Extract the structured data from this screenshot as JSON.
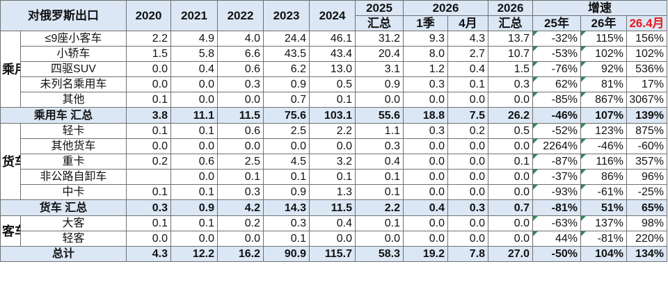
{
  "chart_data": {
    "type": "table",
    "header": {
      "title": "对俄罗斯出口",
      "years": [
        "2020",
        "2021",
        "2022",
        "2023",
        "2024"
      ],
      "c2025_top": "2025",
      "c2025_bottom": "汇总",
      "c2026_top": "2026",
      "c2026_q1": "1季",
      "c2026_apr": "4月",
      "c2026b_top": "2026",
      "c2026b_bottom": "汇总",
      "growth_top": "增速",
      "g25": "25年",
      "g26": "26年",
      "g264": "26.4月"
    },
    "groups": [
      {
        "category": "乘用车",
        "rows": [
          {
            "name": "≤9座小客车",
            "values": [
              "2.2",
              "4.9",
              "4.0",
              "24.4",
              "46.1",
              "31.2",
              "9.3",
              "4.3",
              "13.7",
              "-32%",
              "115%",
              "156%"
            ]
          },
          {
            "name": "小轿车",
            "values": [
              "1.5",
              "5.8",
              "6.6",
              "43.5",
              "43.4",
              "20.4",
              "8.0",
              "2.7",
              "10.7",
              "-53%",
              "102%",
              "102%"
            ]
          },
          {
            "name": "四驱SUV",
            "values": [
              "0.0",
              "0.4",
              "0.6",
              "6.2",
              "13.0",
              "3.1",
              "1.2",
              "0.4",
              "1.5",
              "-76%",
              "92%",
              "536%"
            ]
          },
          {
            "name": "未列名乘用车",
            "values": [
              "0.0",
              "0.0",
              "0.3",
              "0.9",
              "0.5",
              "0.9",
              "0.3",
              "0.1",
              "0.3",
              "62%",
              "81%",
              "17%"
            ]
          },
          {
            "name": "其他",
            "values": [
              "0.1",
              "0.0",
              "0.0",
              "0.7",
              "0.1",
              "0.0",
              "0.0",
              "0.0",
              "0.0",
              "-85%",
              "867%",
              "3067%"
            ]
          }
        ],
        "subtotal": {
          "name": "乘用车 汇总",
          "values": [
            "3.8",
            "11.1",
            "11.5",
            "75.6",
            "103.1",
            "55.6",
            "18.8",
            "7.5",
            "26.2",
            "-46%",
            "107%",
            "139%"
          ]
        }
      },
      {
        "category": "货车",
        "rows": [
          {
            "name": "轻卡",
            "values": [
              "0.1",
              "0.1",
              "0.6",
              "2.5",
              "2.2",
              "1.1",
              "0.3",
              "0.2",
              "0.5",
              "-52%",
              "123%",
              "875%"
            ]
          },
          {
            "name": "其他货车",
            "values": [
              "0.0",
              "0.0",
              "0.0",
              "0.0",
              "0.0",
              "0.3",
              "0.0",
              "0.0",
              "0.0",
              "2264%",
              "-46%",
              "-60%"
            ]
          },
          {
            "name": "重卡",
            "values": [
              "0.2",
              "0.6",
              "2.5",
              "4.5",
              "3.2",
              "0.4",
              "0.0",
              "0.0",
              "0.1",
              "-87%",
              "116%",
              "357%"
            ]
          },
          {
            "name": "非公路自卸车",
            "values": [
              "",
              "0.0",
              "0.1",
              "0.1",
              "0.1",
              "0.1",
              "0.0",
              "0.0",
              "0.0",
              "-37%",
              "86%",
              "96%"
            ]
          },
          {
            "name": "中卡",
            "values": [
              "0.1",
              "0.1",
              "0.3",
              "0.9",
              "1.3",
              "0.1",
              "0.0",
              "0.0",
              "0.0",
              "-93%",
              "-61%",
              "-25%"
            ]
          }
        ],
        "subtotal": {
          "name": "货车 汇总",
          "values": [
            "0.3",
            "0.9",
            "4.2",
            "14.3",
            "11.5",
            "2.2",
            "0.4",
            "0.3",
            "0.7",
            "-81%",
            "51%",
            "65%"
          ]
        }
      },
      {
        "category": "客车",
        "rows": [
          {
            "name": "大客",
            "values": [
              "0.1",
              "0.1",
              "0.2",
              "0.3",
              "0.4",
              "0.1",
              "0.0",
              "0.0",
              "0.0",
              "-63%",
              "137%",
              "98%"
            ]
          },
          {
            "name": "轻客",
            "values": [
              "0.0",
              "0.0",
              "0.0",
              "0.1",
              "0.0",
              "0.0",
              "0.0",
              "0.0",
              "0.0",
              "44%",
              "-81%",
              "220%"
            ]
          }
        ]
      }
    ],
    "total": {
      "name": "总计",
      "values": [
        "4.3",
        "12.2",
        "16.2",
        "90.9",
        "115.7",
        "58.3",
        "19.2",
        "7.8",
        "27.0",
        "-50%",
        "104%",
        "134%"
      ]
    },
    "colors": {
      "header_bg": "#dbe7f5",
      "highlight": "#e8191b",
      "border": "#6f6f6f",
      "marker": "#2e8b57"
    }
  }
}
